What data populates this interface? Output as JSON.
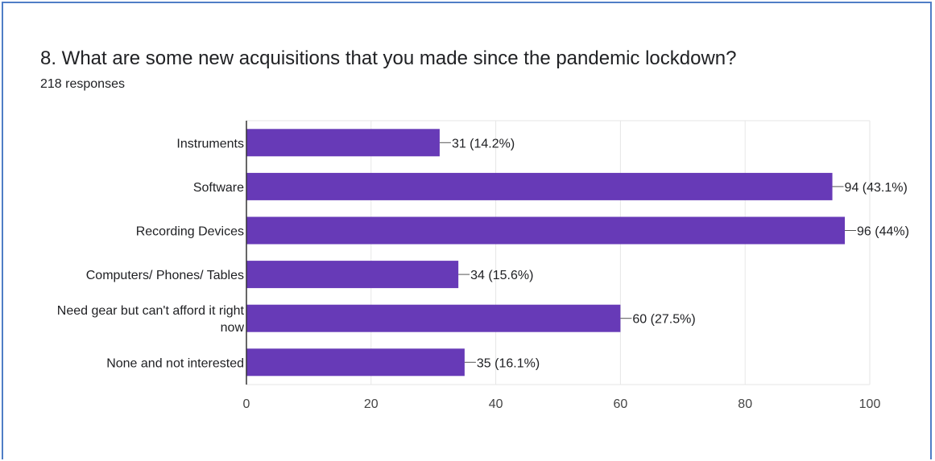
{
  "question": "8. What are some new acquisitions that you made since the pandemic lockdown?",
  "responses": "218 responses",
  "chart_data": {
    "type": "bar",
    "orientation": "horizontal",
    "categories": [
      [
        "Instruments"
      ],
      [
        "Software"
      ],
      [
        "Recording Devices"
      ],
      [
        "Computers/ Phones/ Tables"
      ],
      [
        "Need gear but can't afford it right",
        "now"
      ],
      [
        "None and not interested"
      ]
    ],
    "values": [
      31,
      94,
      96,
      34,
      60,
      35
    ],
    "data_labels": [
      "31 (14.2%)",
      "94 (43.1%)",
      "96 (44%)",
      "34 (15.6%)",
      "60 (27.5%)",
      "35 (16.1%)"
    ],
    "xlim": [
      0,
      100
    ],
    "xticks": [
      0,
      20,
      40,
      60,
      80,
      100
    ],
    "grid": true,
    "bar_color": "#673ab7",
    "grid_color": "#e6e6e6"
  }
}
